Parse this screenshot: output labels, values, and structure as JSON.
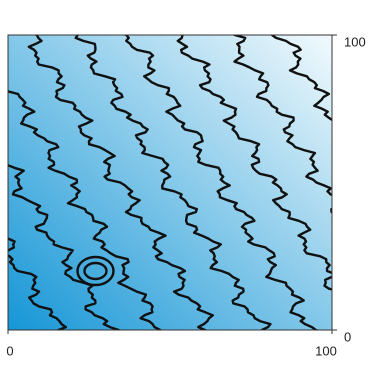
{
  "chart_data": {
    "type": "contour",
    "xlim": [
      0,
      100
    ],
    "ylim": [
      0,
      100
    ],
    "xticks": [
      0,
      100
    ],
    "yticks": [
      0,
      100
    ],
    "levels": [
      10,
      20,
      30,
      40,
      50,
      60,
      70,
      80,
      90
    ],
    "colormap": [
      "#1696d6",
      "#f2fafd"
    ],
    "line_color": "#111111"
  }
}
